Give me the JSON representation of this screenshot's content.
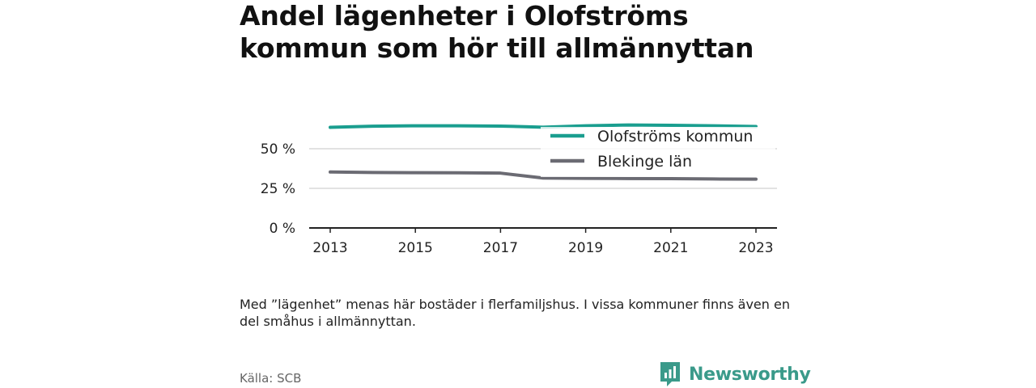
{
  "title": "Andel lägenheter i Olofströms kommun som hör till allmännyttan",
  "note": "Med ”lägenhet” menas här bostäder i flerfamiljshus. I vissa kommuner finns även en del småhus i allmännyttan.",
  "source": "Källa: SCB",
  "brand": {
    "name": "Newsworthy",
    "icon": "newsworthy-logo-icon",
    "color": "#3a9a8a"
  },
  "chart_data": {
    "type": "line",
    "x": [
      2013,
      2014,
      2015,
      2016,
      2017,
      2018,
      2019,
      2020,
      2021,
      2022,
      2023
    ],
    "x_ticks": [
      "2013",
      "2015",
      "2017",
      "2019",
      "2021",
      "2023"
    ],
    "y_ticks": [
      "0 %",
      "25 %",
      "50 %"
    ],
    "ylim": [
      0,
      65
    ],
    "grid": true,
    "legend_position": "top-right",
    "series": [
      {
        "name": "Olofströms kommun",
        "color": "#1a9e8f",
        "values": [
          63.5,
          64.2,
          64.5,
          64.5,
          64.3,
          63.6,
          64.5,
          65.0,
          64.8,
          64.5,
          64.0
        ]
      },
      {
        "name": "Blekinge län",
        "color": "#6b6b73",
        "values": [
          35.3,
          35.0,
          34.9,
          34.8,
          34.6,
          31.5,
          31.3,
          31.2,
          31.1,
          30.9,
          30.8
        ]
      }
    ]
  }
}
